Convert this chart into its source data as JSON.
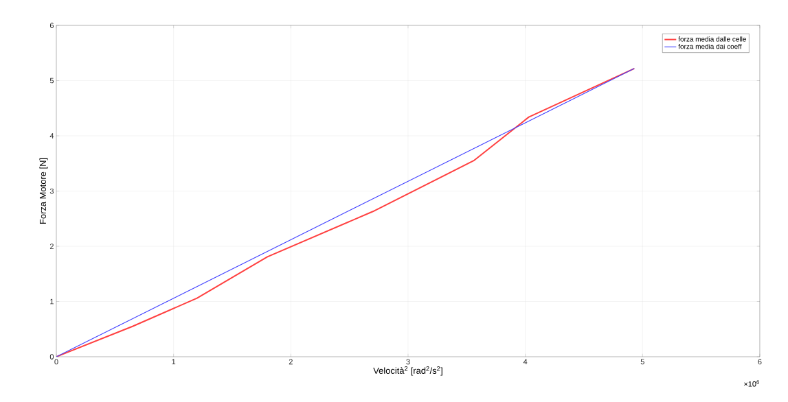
{
  "chart_data": {
    "type": "line",
    "xlabel": "Velocità$^{2}$ [rad$^{2}$/s$^{2}$]",
    "ylabel": "Forza Motore [N]",
    "annotations": [
      "×10$^{6}$"
    ],
    "xlim": [
      0,
      6
    ],
    "ylim": [
      0,
      6
    ],
    "xticks": [
      0,
      1,
      2,
      3,
      4,
      5,
      6
    ],
    "yticks": [
      0,
      1,
      2,
      3,
      4,
      5,
      6
    ],
    "grid": true,
    "legend": "top right",
    "marker": "none",
    "line_style": "solid",
    "series": [
      {
        "name": "forza media dalle celle",
        "color": "#ff4040",
        "x": [
          0,
          0.65,
          1.2,
          1.8,
          2.7,
          3.56,
          4.03,
          4.93
        ],
        "values": [
          0,
          0.55,
          1.06,
          1.81,
          2.63,
          3.55,
          4.34,
          5.22
        ]
      },
      {
        "name": "forza media dai coeff",
        "color": "#4040ff",
        "x": [
          0,
          4.93
        ],
        "values": [
          0,
          5.22
        ]
      }
    ]
  }
}
